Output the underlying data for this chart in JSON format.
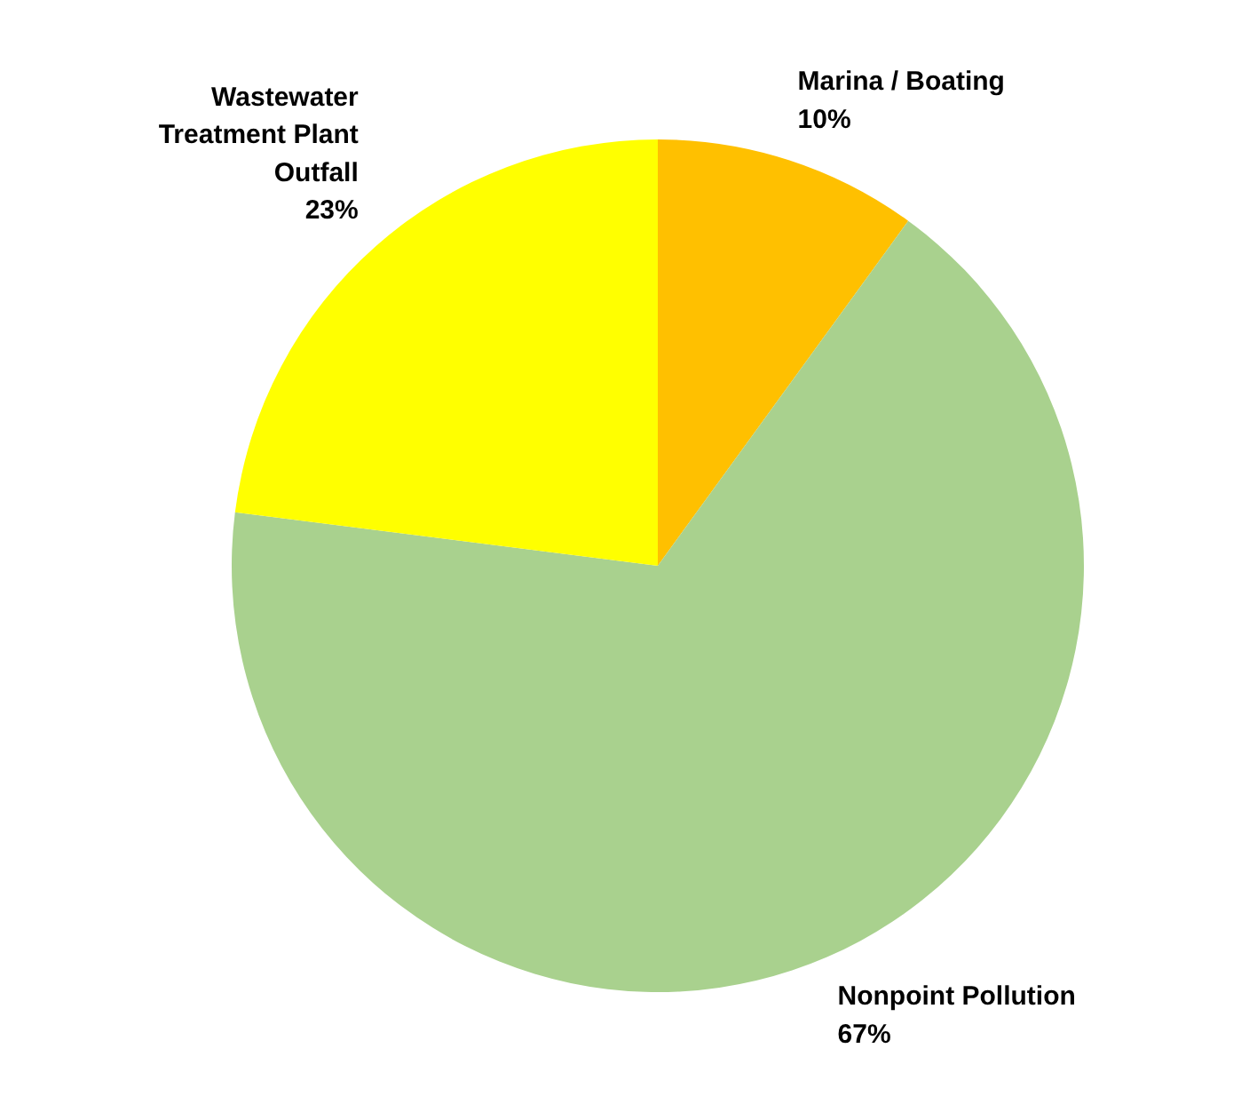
{
  "chart_data": {
    "type": "pie",
    "categories": [
      "Marina / Boating",
      "Nonpoint Pollution",
      "Wastewater Treatment Plant Outfall"
    ],
    "values": [
      10,
      67,
      23
    ],
    "colors": [
      "#ffc000",
      "#a9d18e",
      "#ffff00"
    ],
    "value_labels": [
      "10%",
      "67%",
      "23%"
    ]
  }
}
